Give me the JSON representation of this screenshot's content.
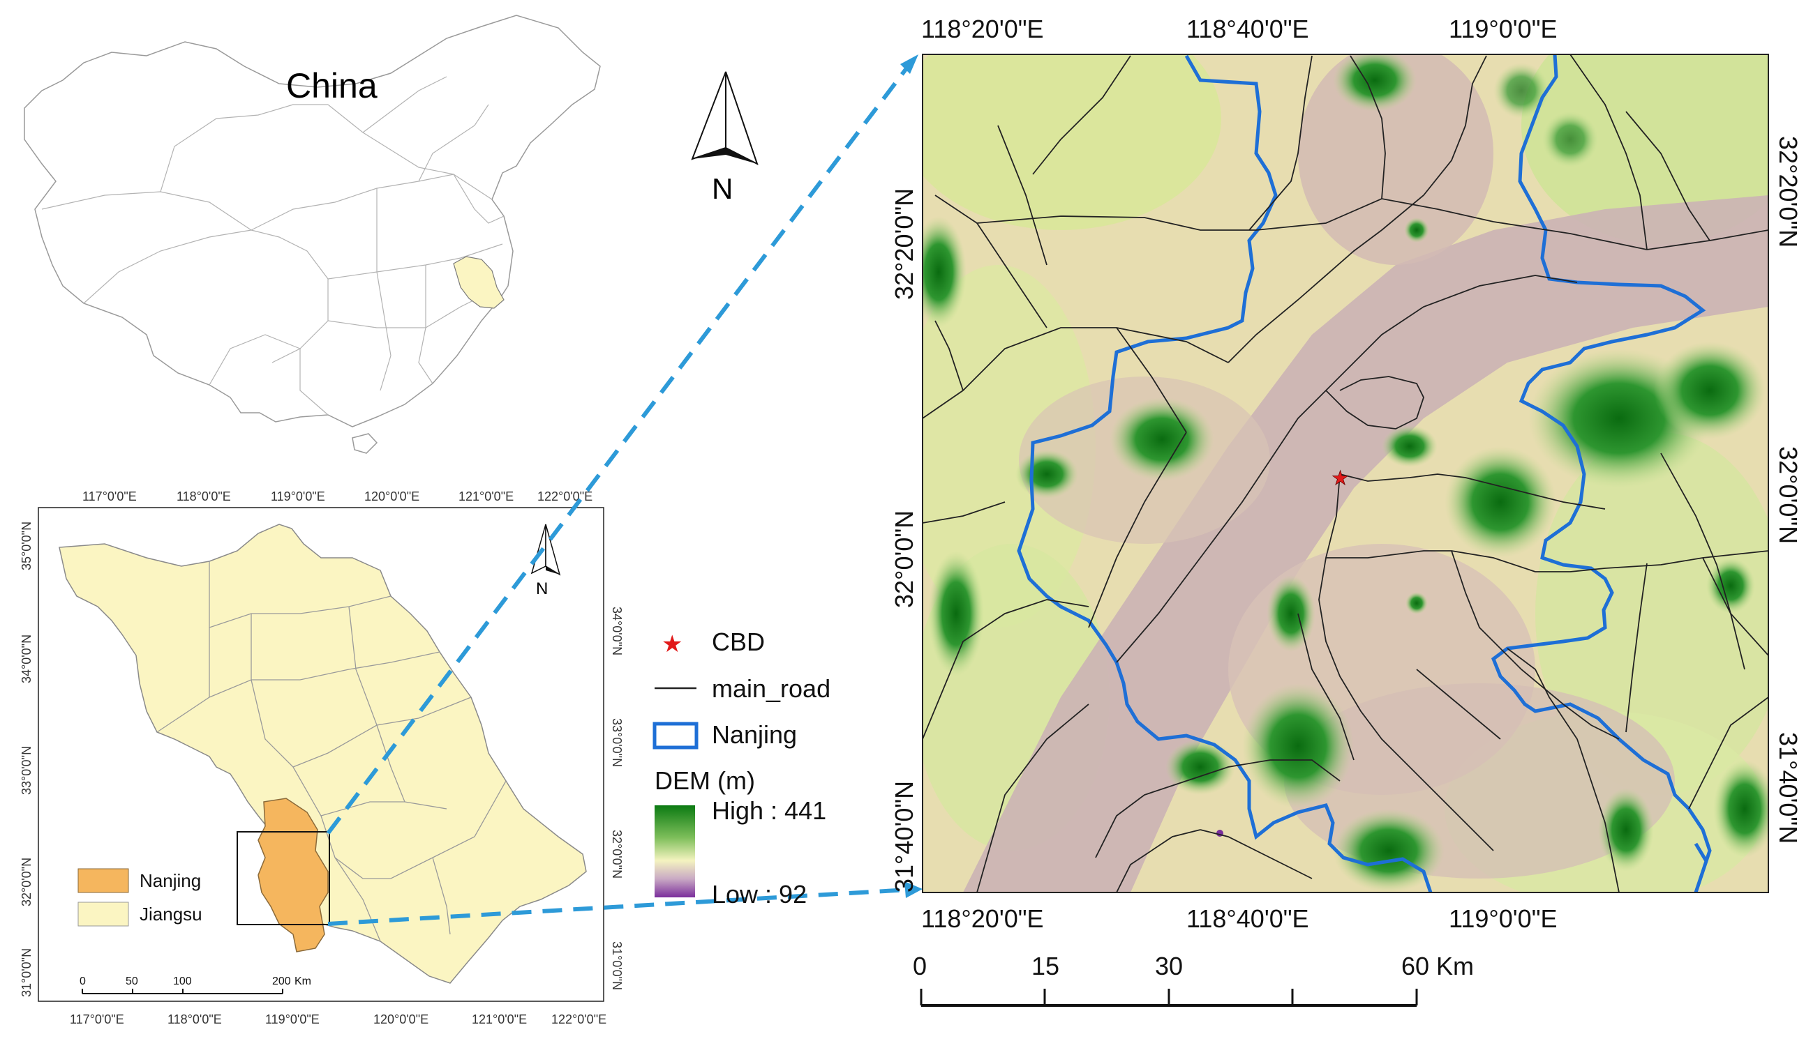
{
  "china_panel": {
    "title": "China"
  },
  "jiangsu_panel": {
    "top_lon_ticks": [
      "117°0'0\"E",
      "118°0'0\"E",
      "119°0'0\"E",
      "120°0'0\"E",
      "121°0'0\"E",
      "122°0'0\"E"
    ],
    "bottom_lon_ticks": [
      "117°0'0\"E",
      "118°0'0\"E",
      "119°0'0\"E",
      "120°0'0\"E",
      "121°0'0\"E",
      "122°0'0\"E"
    ],
    "left_lat_ticks": [
      "35°0'0\"N",
      "34°0'0\"N",
      "33°0'0\"N",
      "32°0'0\"N",
      "31°0'0\"N"
    ],
    "right_lat_ticks": [
      "34°0'0\"N",
      "33°0'0\"N",
      "32°0'0\"N",
      "31°0'0\"N"
    ],
    "north_label": "N",
    "legend": [
      {
        "label": "Nanjing",
        "color": "#F5B65E"
      },
      {
        "label": "Jiangsu",
        "color": "#FBF5C2"
      }
    ],
    "scale": {
      "labels": [
        "0",
        "50",
        "100",
        "200"
      ],
      "unit": "Km"
    }
  },
  "north_arrow": {
    "label": "N"
  },
  "dem_panel": {
    "top_lon_ticks": [
      "118°20'0\"E",
      "118°40'0\"E",
      "119°0'0\"E"
    ],
    "bottom_lon_ticks": [
      "118°20'0\"E",
      "118°40'0\"E",
      "119°0'0\"E"
    ],
    "left_lat_ticks": [
      "32°20'0\"N",
      "32°0'0\"N",
      "31°40'0\"N"
    ],
    "right_lat_ticks": [
      "32°20'0\"N",
      "32°0'0\"N",
      "31°40'0\"N"
    ],
    "legend": {
      "cbd": "CBD",
      "road": "main_road",
      "boundary": "Nanjing",
      "dem_title": "DEM (m)",
      "high": "High : 441",
      "low": "Low : 92",
      "colors": {
        "high": "#0B7A12",
        "mid": "#F4F3C0",
        "low": "#7A2E9C",
        "boundary": "#1E6FD6",
        "cbd": "#E11A1A"
      }
    },
    "scale": {
      "labels": [
        "0",
        "15",
        "30",
        "60 Km"
      ]
    }
  },
  "colors": {
    "leader": "#2D9AD8"
  }
}
